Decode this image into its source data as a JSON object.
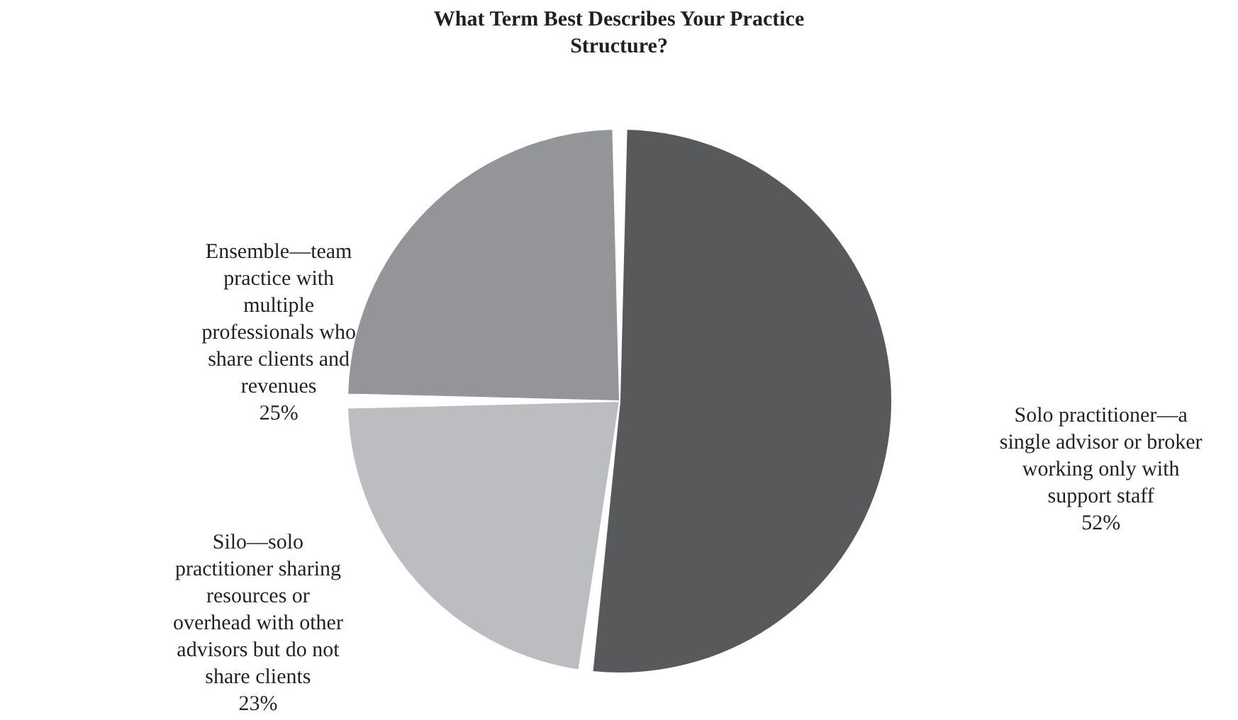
{
  "chart_data": {
    "type": "pie",
    "title": "What Term Best Describes Your Practice Structure?",
    "categories": [
      "Solo practitioner—a single advisor or broker working only with support staff",
      "Silo—solo practitioner sharing resources or overhead with other advisors but do not share clients",
      "Ensemble—team practice with multiple professionals who share clients and revenues"
    ],
    "values": [
      52,
      23,
      25
    ],
    "colors": [
      "#58595b",
      "#bcbdc0",
      "#939598"
    ],
    "value_labels": [
      "52%",
      "23%",
      "25%"
    ]
  }
}
